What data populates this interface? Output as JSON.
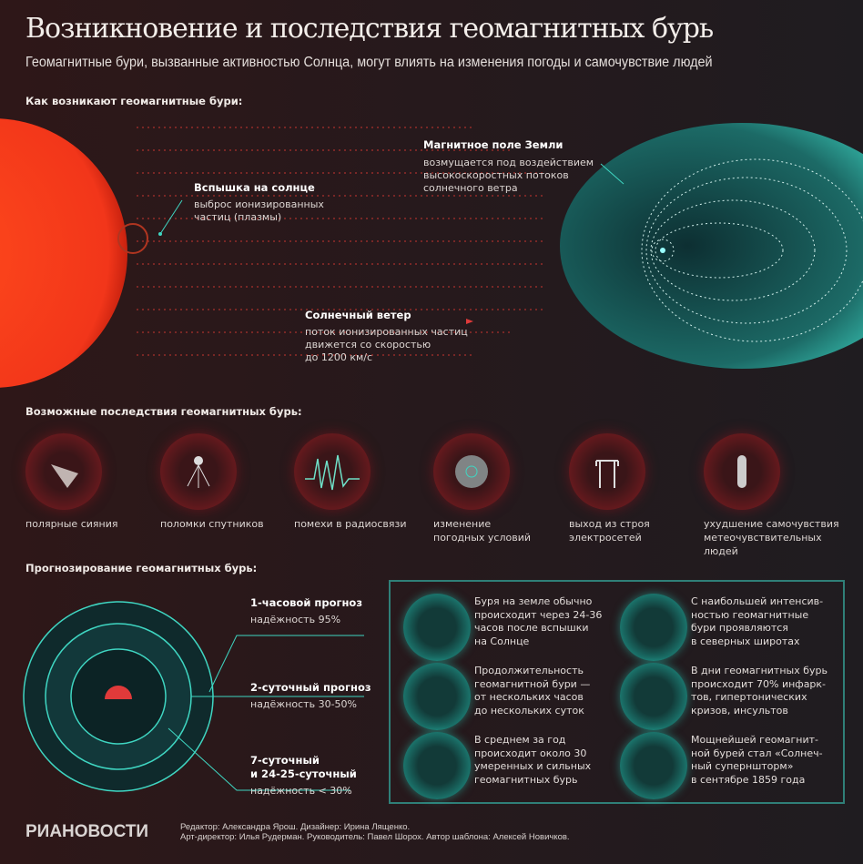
{
  "title": "Возникновение и последствия геомагнитных бурь",
  "subtitle": "Геомагнитные бури, вызванные активностью Солнца, могут влиять на изменения погоды и самочувствие людей",
  "section1": {
    "heading": "Как возникают геомагнитные бури:",
    "flare": {
      "title": "Вспышка на солнце",
      "text": "выброс ионизированных\nчастиц (плазмы)"
    },
    "magnetic": {
      "title": "Магнитное поле Земли",
      "text": "возмущается под воздействием\nвысокоскоростных потоков\nсолнечного ветра"
    },
    "wind": {
      "title": "Солнечный ветер",
      "text": "поток ионизированных частиц\nдвижется со скоростью\nдо 1200 км/с"
    }
  },
  "section2": {
    "heading": "Возможные последствия геомагнитных бурь:",
    "items": [
      {
        "label": "полярные сияния",
        "icon": "aurora-icon"
      },
      {
        "label": "поломки спутников",
        "icon": "satellite-icon"
      },
      {
        "label": "помехи в радиосвязи",
        "icon": "radio-wave-icon"
      },
      {
        "label": "изменение\nпогодных условий",
        "icon": "weather-icon"
      },
      {
        "label": "выход из строя\nэлектросетей",
        "icon": "power-line-icon"
      },
      {
        "label": "ухудшение самочувствия\nметеочувствительных\nлюдей",
        "icon": "pill-icon"
      }
    ]
  },
  "section3": {
    "heading": "Прогнозирование геомагнитных бурь:",
    "forecasts": [
      {
        "title": "1-часовой прогноз",
        "reliability": "надёжность 95%"
      },
      {
        "title": "2-суточный прогноз",
        "reliability": "надёжность 30-50%"
      },
      {
        "title": "7-суточный\nи 24-25-суточный",
        "reliability": "надёжность < 30%"
      }
    ],
    "facts": [
      {
        "text": "Буря на земле обычно\nпроисходит через 24-36\nчасов после вспышки\nна Солнце",
        "icon": "sun-icon"
      },
      {
        "text": "С наибольшей интенсив-\nностью геомагнитные\nбури проявляются\nв северных широтах",
        "icon": "globe-icon"
      },
      {
        "text": "Продолжительность\nгеомагнитной бури —\nот нескольких часов\nдо нескольких суток",
        "icon": "clock-icon"
      },
      {
        "text": "В дни геомагнитных бурь\nпроисходит 70% инфарк-\nтов, гипертонических\nкризов, инсультов",
        "icon": "medical-cross-icon"
      },
      {
        "text": "В среднем за год\nпроисходит около 30\nумеренных и сильных\nгеомагнитных бурь",
        "icon": "flame-icon"
      },
      {
        "text": "Мощнейшей геомагнит-\nной бурей стал «Солнеч-\nный суперншторм»\nв сентябре 1859 года",
        "icon": "spiral-icon"
      }
    ]
  },
  "footer": {
    "logo": "РИАНОВОСТИ",
    "credits": "Редактор: Александра Ярош. Дизайнер: Ирина Лященко.\nАрт-директор: Илья Рудерман. Руководитель: Павел Шорох. Автор шаблона: Алексей Новичков."
  },
  "colors": {
    "sun": "#ff3b1a",
    "teal": "#3fd6c2",
    "accent_red": "#e03a3a"
  }
}
